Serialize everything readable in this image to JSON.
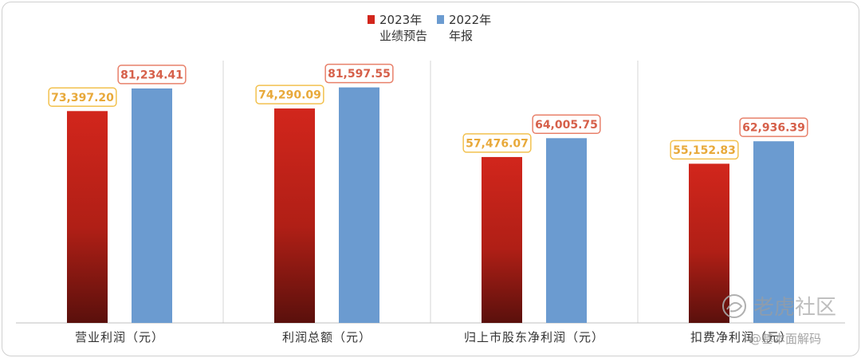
{
  "chart_data": {
    "type": "bar",
    "categories": [
      "营业利润（元）",
      "利润总额（元）",
      "归上市股东净利润（元）",
      "扣费净利润（元）"
    ],
    "series": [
      {
        "name": "2023年业绩预告",
        "values": [
          73397.2,
          74290.09,
          57476.07,
          55152.83
        ],
        "labels": [
          "73,397.20",
          "74,290.09",
          "57,476.07",
          "55,152.83"
        ]
      },
      {
        "name": "2022年年报",
        "values": [
          81234.41,
          81597.55,
          64005.75,
          62936.39
        ],
        "labels": [
          "81,234.41",
          "81,597.55",
          "64,005.75",
          "62,936.39"
        ]
      }
    ],
    "ylim": [
      0,
      100000
    ],
    "grid": false,
    "legend_position": "top-center"
  },
  "legend": {
    "series1_line1": "2023年",
    "series1_line2": "业绩预告",
    "series2_line1": "2022年",
    "series2_line2": "年报"
  },
  "watermark": {
    "brand": "老虎社区",
    "handle": "@基本面解码"
  },
  "colors": {
    "series1_top": "#d2261c",
    "series1_bottom": "#5a100c",
    "series2": "#6b9bd0",
    "label1_border": "#f2c14e",
    "label1_text": "#e8a93a",
    "label2_border": "#e8806a",
    "label2_text": "#d6604a"
  },
  "icons": {
    "watermark_logo": "tiger-logo-icon"
  }
}
